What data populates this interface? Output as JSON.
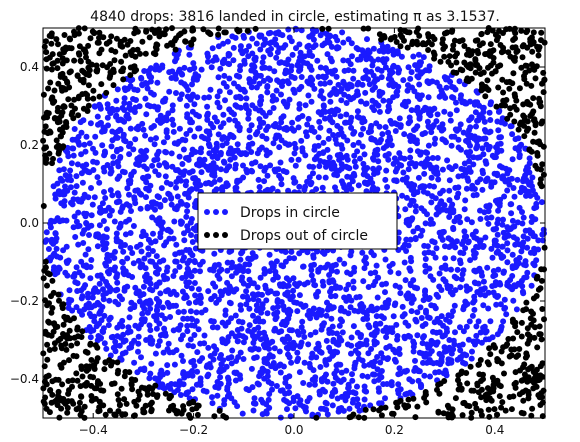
{
  "chart_data": {
    "type": "scatter",
    "title": "4840 drops: 3816 landed in circle, estimating π as 3.1537.",
    "xlabel": "",
    "ylabel": "",
    "xlim": [
      -0.5,
      0.5
    ],
    "ylim": [
      -0.5,
      0.5
    ],
    "x_ticks": [
      -0.4,
      -0.2,
      0.0,
      0.2,
      0.4
    ],
    "y_ticks": [
      -0.4,
      -0.2,
      0.0,
      0.2,
      0.4
    ],
    "x_tick_labels": [
      "−0.4",
      "−0.2",
      "0.0",
      "0.2",
      "0.4"
    ],
    "y_tick_labels": [
      "−0.4",
      "−0.2",
      "0.0",
      "0.2",
      "0.4"
    ],
    "grid": false,
    "legend_placement": "center",
    "total_drops": 4840,
    "drops_in_circle": 3816,
    "pi_estimate": 3.1537,
    "circle_radius": 0.5,
    "series": [
      {
        "name": "Drops in circle",
        "color": "#1a1aff",
        "count": 3816,
        "region": "x^2 + y^2 <= 0.25"
      },
      {
        "name": "Drops out of circle",
        "color": "#000000",
        "count": 1024,
        "region": "x^2 + y^2 > 0.25"
      }
    ]
  }
}
